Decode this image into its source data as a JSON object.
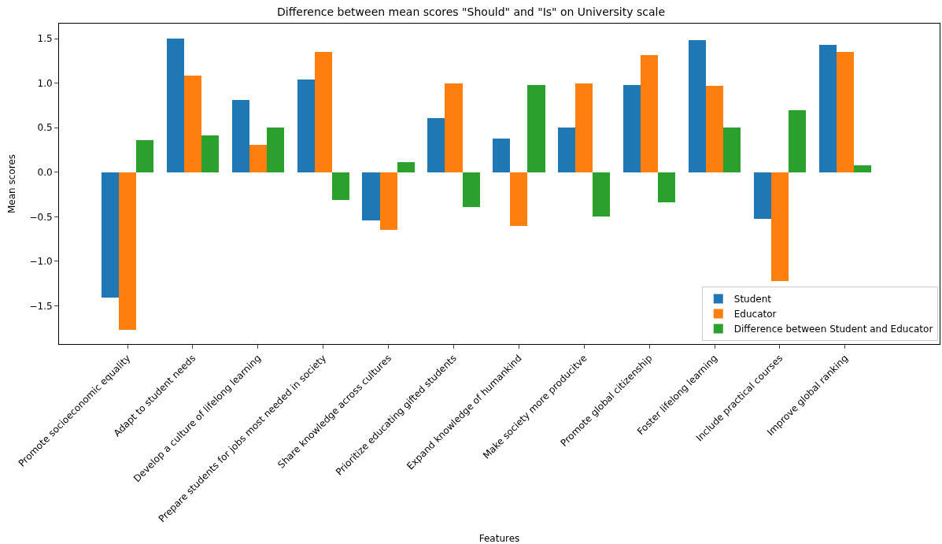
{
  "chart_data": {
    "type": "bar",
    "title": "Difference between mean scores \"Should\" and \"Is\" on University scale",
    "xlabel": "Features",
    "ylabel": "Mean scores",
    "categories": [
      "Promote socioeconomic equality",
      "Adapt to student needs",
      "Develop a culture of lifelong learning",
      "Prepare students for jobs most needed in society",
      "Share knowledge across cultures",
      "Prioritize educating gifted students",
      "Expand knowledge of humankind",
      "Make society more producitve",
      "Promote global citizenship",
      "Foster lifelong learning",
      "Include practical courses",
      "Improve global ranking"
    ],
    "series": [
      {
        "name": "Student",
        "color": "#1f77b4",
        "values": [
          -1.41,
          1.5,
          0.81,
          1.04,
          -0.54,
          0.61,
          0.38,
          0.5,
          0.98,
          1.48,
          -0.52,
          1.43
        ]
      },
      {
        "name": "Educator",
        "color": "#ff7f0e",
        "values": [
          -1.77,
          1.09,
          0.31,
          1.35,
          -0.65,
          1.0,
          -0.6,
          1.0,
          1.32,
          0.97,
          -1.22,
          1.35
        ]
      },
      {
        "name": "Difference between Student and Educator",
        "color": "#2ca02c",
        "values": [
          0.36,
          0.41,
          0.5,
          -0.31,
          0.11,
          -0.39,
          0.98,
          -0.5,
          -0.34,
          0.5,
          0.7,
          0.08
        ]
      }
    ],
    "ylim": [
      -1.93,
      1.67
    ],
    "yticks": [
      {
        "value": -1.5,
        "label": "−1.5"
      },
      {
        "value": -1.0,
        "label": "−1.0"
      },
      {
        "value": -0.5,
        "label": "−0.5"
      },
      {
        "value": 0.0,
        "label": "0.0"
      },
      {
        "value": 0.5,
        "label": "0.5"
      },
      {
        "value": 1.0,
        "label": "1.0"
      },
      {
        "value": 1.5,
        "label": "1.5"
      }
    ],
    "legend": "bottom right"
  }
}
